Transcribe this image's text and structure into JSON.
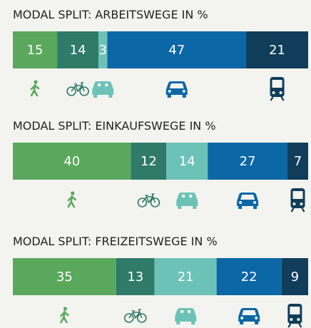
{
  "chart_data": [
    {
      "type": "bar",
      "stacked": true,
      "orientation": "horizontal",
      "title": "MODAL SPLIT: ARBEITSWEGE IN %",
      "values": [
        15,
        14,
        3,
        47,
        21
      ],
      "colors": [
        "#5aa85c",
        "#2f7a68",
        "#6dc2b8",
        "#0b67a6",
        "#0f3d5a"
      ]
    },
    {
      "type": "bar",
      "stacked": true,
      "orientation": "horizontal",
      "title": "MODAL SPLIT: EINKAUFSWEGE IN %",
      "values": [
        40,
        12,
        14,
        27,
        7
      ],
      "colors": [
        "#5aa85c",
        "#2f7a68",
        "#6dc2b8",
        "#0b67a6",
        "#0f3d5a"
      ]
    },
    {
      "type": "bar",
      "stacked": true,
      "orientation": "horizontal",
      "title": "MODAL SPLIT: FREIZEITSWEGE IN %",
      "values": [
        35,
        13,
        21,
        22,
        9
      ],
      "colors": [
        "#5aa85c",
        "#2f7a68",
        "#6dc2b8",
        "#0b67a6",
        "#0f3d5a"
      ]
    }
  ]
}
